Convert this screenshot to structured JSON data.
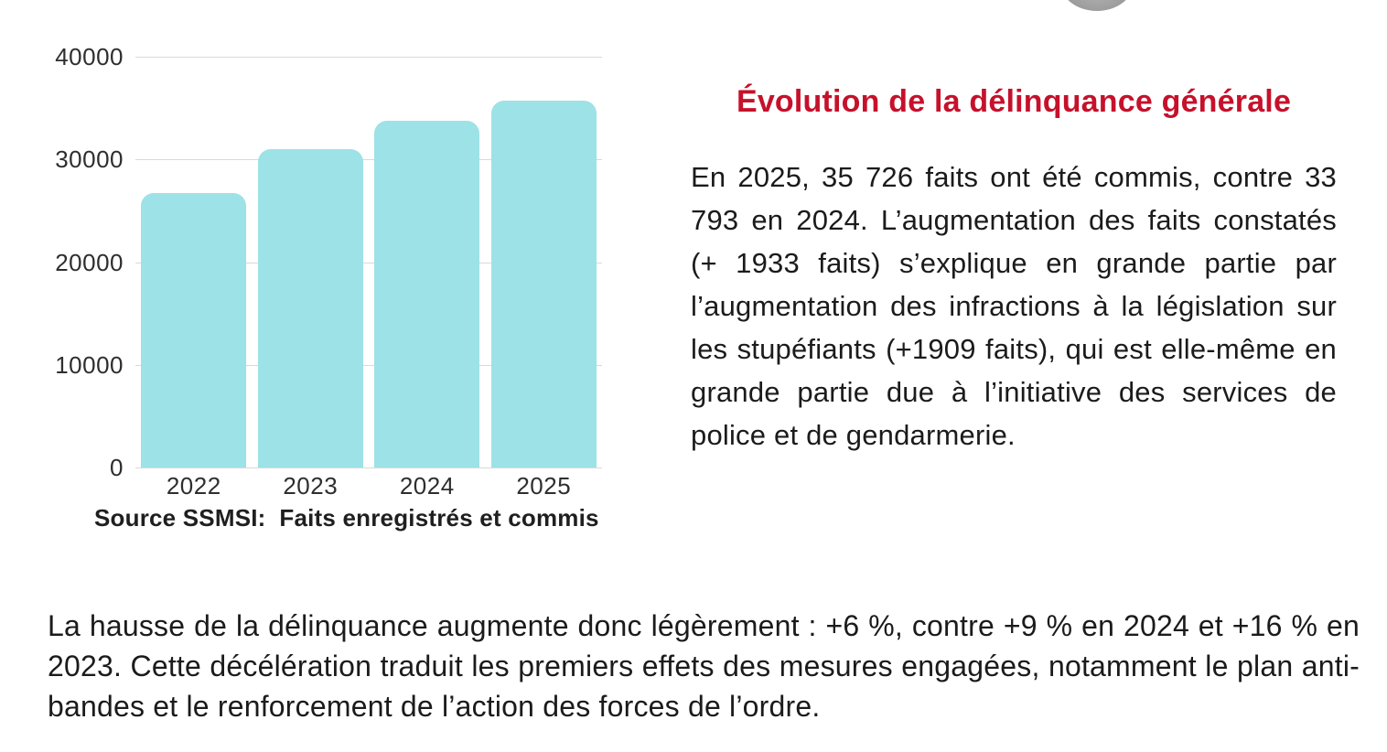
{
  "chart_data": {
    "type": "bar",
    "categories": [
      "2022",
      "2023",
      "2024",
      "2025"
    ],
    "values": [
      26700,
      31000,
      33793,
      35726
    ],
    "title": "",
    "xlabel": "",
    "ylabel": "",
    "ylim": [
      0,
      40000
    ],
    "yticks": [
      0,
      10000,
      20000,
      30000,
      40000
    ],
    "grid": true,
    "legend": "none",
    "bar_color": "#9de2e7",
    "source_note": "Source SSMSI:  Faits enregistrés et commis"
  },
  "article": {
    "heading": {
      "text": "Évolution de la délinquance générale",
      "color": "#c6112b"
    },
    "paragraph": "En 2025, 35 726 faits ont été commis, contre 33 793 en 2024. L’augmentation des faits constatés (+ 1933 faits) s’explique en grande partie par l’augmentation des infractions à la législation sur les stupéfiants (+1909 faits), qui est elle-même en grande partie due à l’initiative des services de police et de gendarmerie."
  },
  "footer_paragraph": "La hausse de la délinquance augmente donc légèrement : +6 %, contre +9 % en 2024 et +16 % en 2023. Cette décélération traduit les premiers effets des mesures engagées, notamment le plan anti-bandes et le renforcement de l’action des forces de l’ordre.",
  "decoration": {
    "top_right_image": "cropped-grayscale-circular-image"
  }
}
